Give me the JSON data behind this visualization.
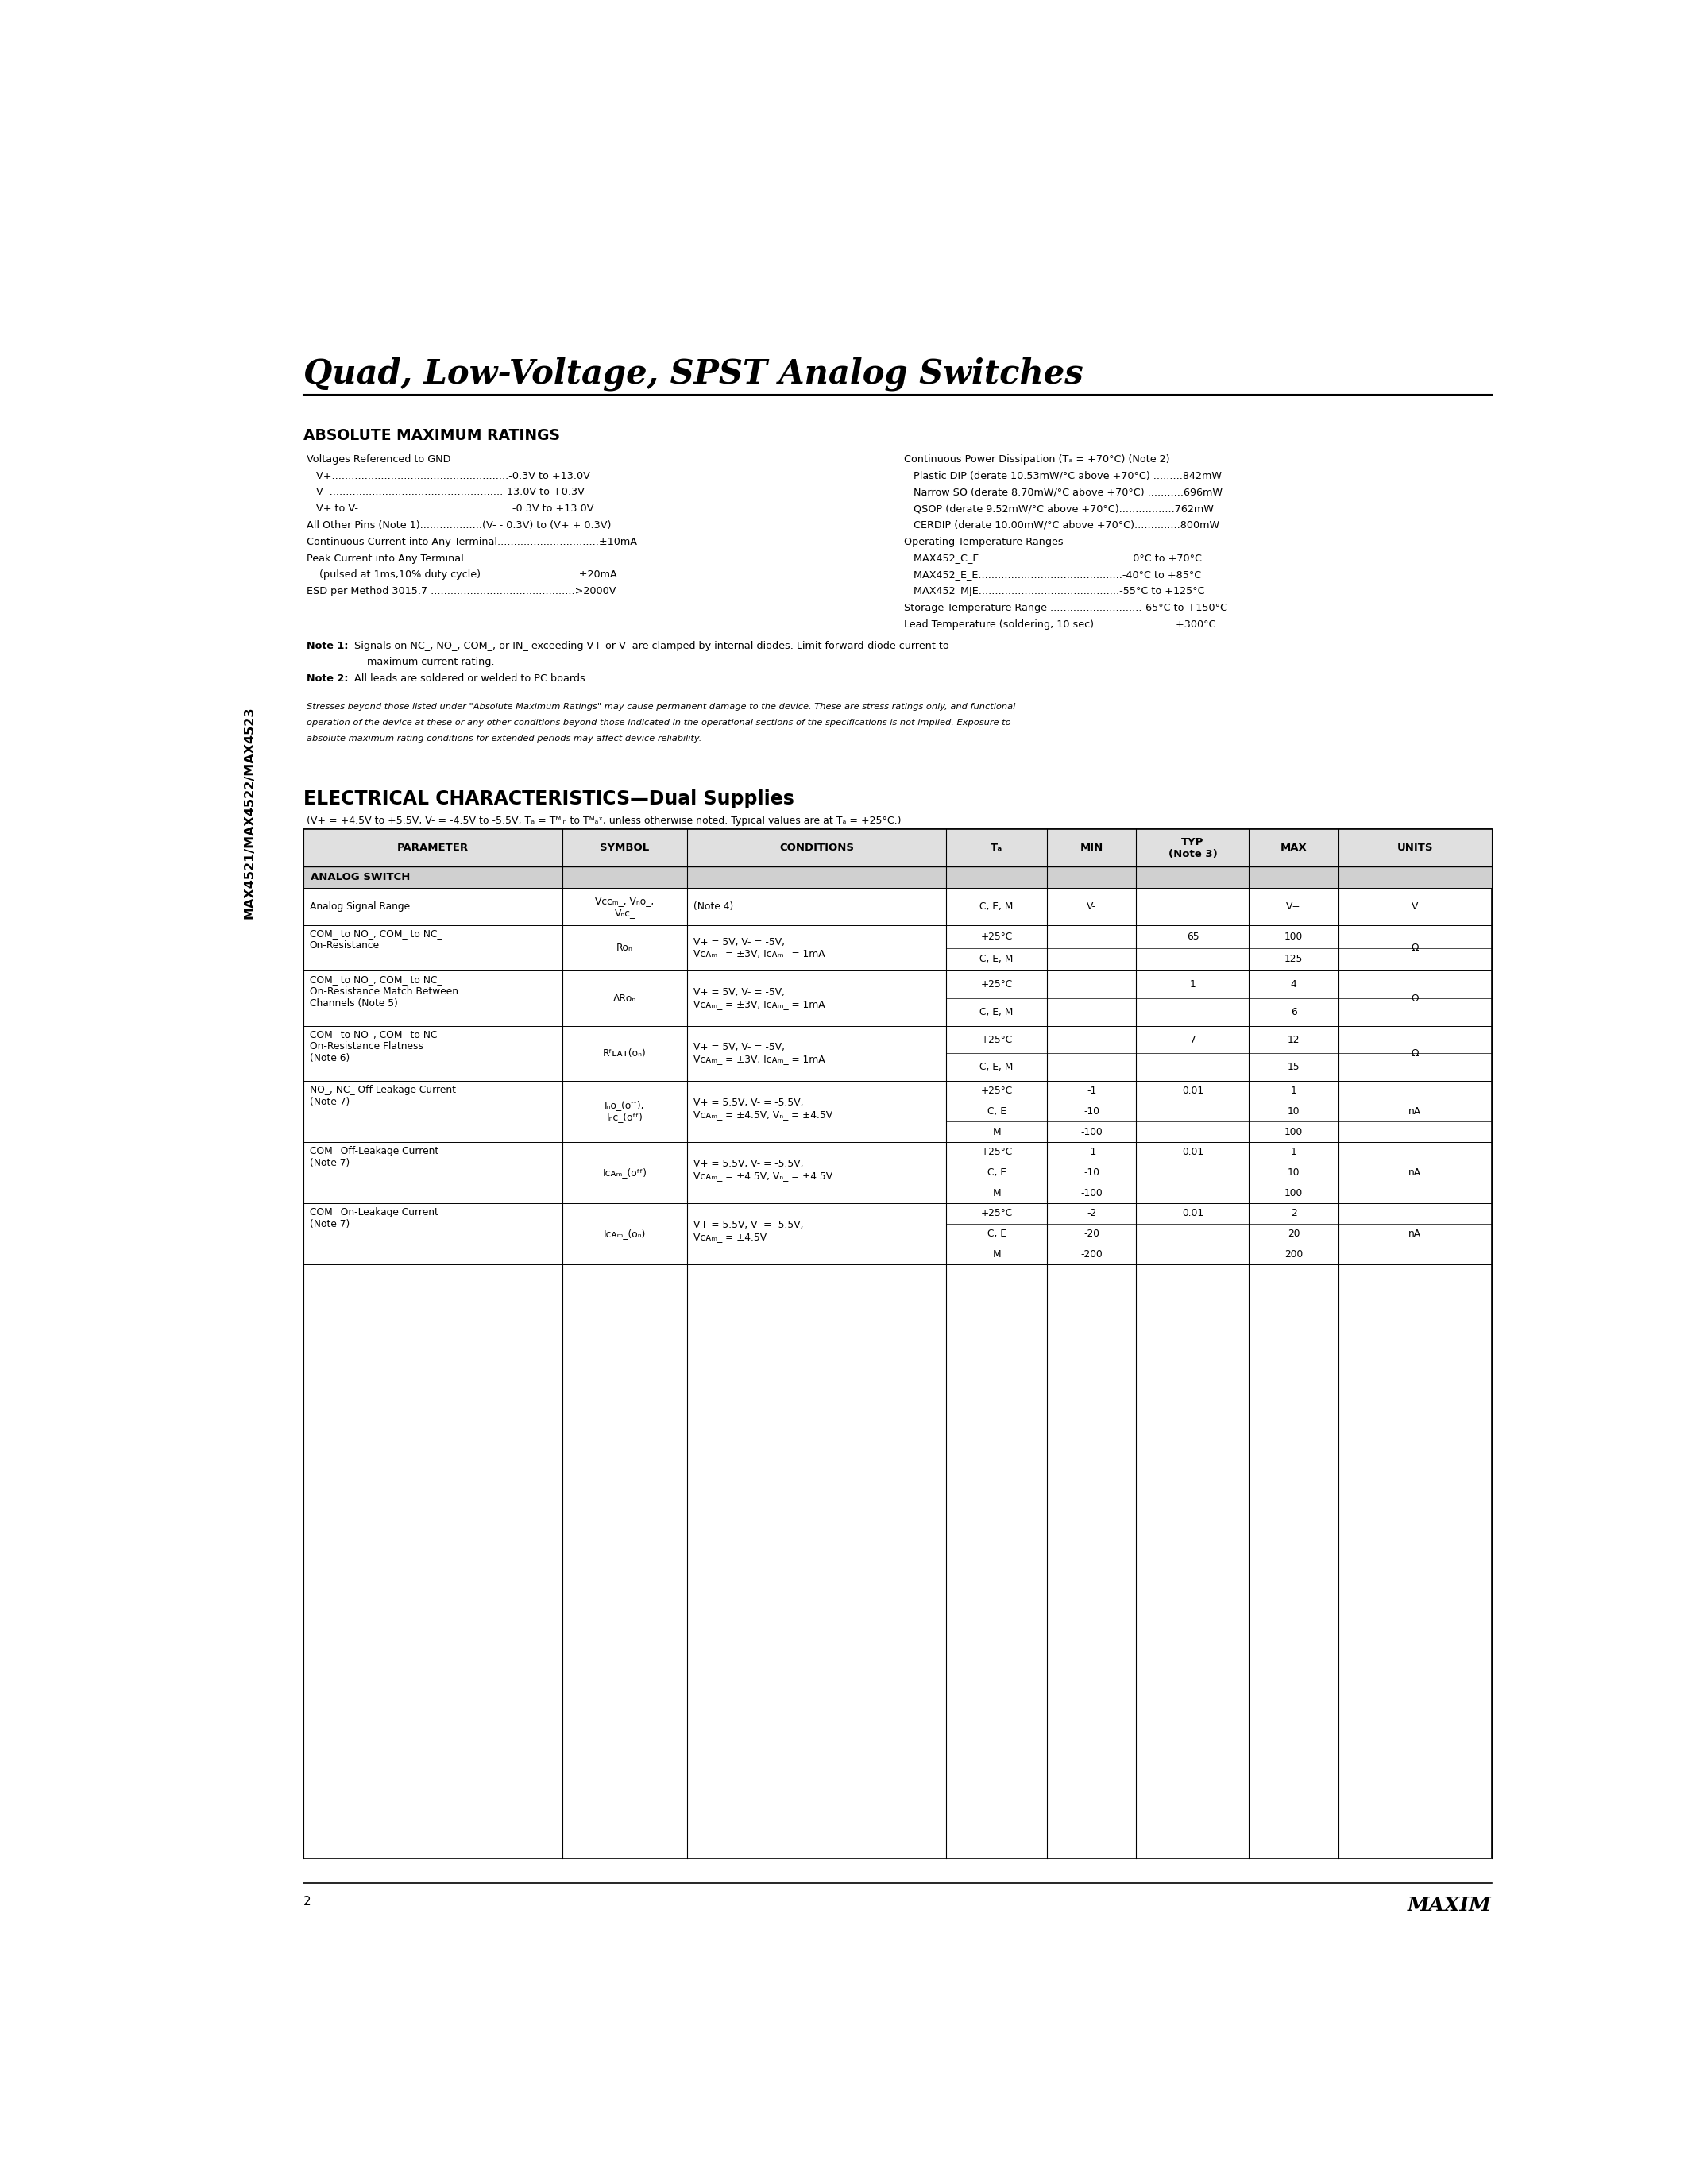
{
  "page_bg": "#ffffff",
  "title": "Quad, Low-Voltage, SPST Analog Switches",
  "sidebar_text": "MAX4521/MAX4522/MAX4523",
  "section1_title": "ABSOLUTE MAXIMUM RATINGS",
  "footer_page": "2",
  "footer_logo": "MAXIM"
}
